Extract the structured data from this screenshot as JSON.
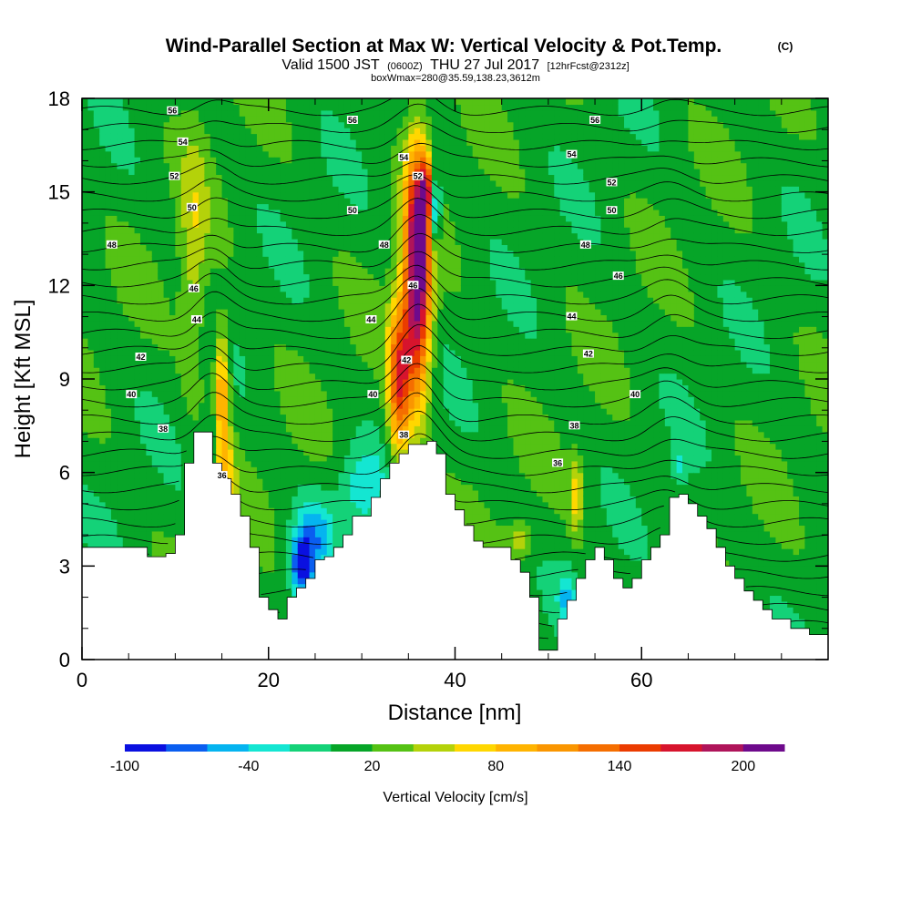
{
  "chart_data": {
    "type": "heatmap",
    "title": "Wind-Parallel Section at Max W: Vertical Velocity & Pot.Temp.",
    "copyright": "(C)",
    "subtitle": {
      "valid": "Valid 1500 JST",
      "utc": "(0600Z)",
      "date": "THU 27 Jul 2017",
      "fcst": "[12hrFcst@2312z]"
    },
    "subtitle2": "boxWmax=280@35.59,138.23,3612m",
    "xlabel": "Distance [nm]",
    "ylabel": "Height [Kft MSL]",
    "xlim": [
      0,
      80
    ],
    "ylim": [
      0,
      18
    ],
    "x_ticks": [
      0,
      20,
      40,
      60
    ],
    "y_ticks": [
      0,
      3,
      6,
      9,
      12,
      15,
      18
    ],
    "colorbar": {
      "label": "Vertical Velocity [cm/s]",
      "tick_labels": [
        "-100",
        "-40",
        "20",
        "80",
        "140",
        "200"
      ],
      "tick_values": [
        -100,
        -40,
        20,
        80,
        140,
        200
      ],
      "levels": [
        -100,
        -80,
        -60,
        -40,
        -20,
        0,
        20,
        40,
        60,
        80,
        100,
        120,
        140,
        160,
        180,
        200,
        220
      ],
      "colors": [
        "#0a10e0",
        "#0a5ef0",
        "#05b4f0",
        "#14e6d2",
        "#14d278",
        "#06a528",
        "#55c214",
        "#b4d20a",
        "#ffd700",
        "#ffb400",
        "#fa9600",
        "#f56e00",
        "#eb3c00",
        "#d7142d",
        "#af145a",
        "#6e0a8c"
      ]
    },
    "series": [
      {
        "name": "Vertical Velocity",
        "note": "filled contours"
      },
      {
        "name": "Pot.Temp.",
        "contour_labels": [
          "56",
          "54",
          "52",
          "50",
          "48",
          "46",
          "44",
          "42",
          "40",
          "38",
          "36"
        ]
      }
    ],
    "terrain_kft": [
      [
        0,
        3.6
      ],
      [
        5,
        3.6
      ],
      [
        7,
        3.3
      ],
      [
        9,
        3.4
      ],
      [
        10,
        4.0
      ],
      [
        11,
        6.3
      ],
      [
        12,
        7.3
      ],
      [
        13,
        7.3
      ],
      [
        14,
        6.3
      ],
      [
        15,
        5.8
      ],
      [
        16,
        5.3
      ],
      [
        17,
        4.6
      ],
      [
        18,
        3.6
      ],
      [
        19,
        2.0
      ],
      [
        20,
        1.6
      ],
      [
        21,
        1.3
      ],
      [
        22,
        2.0
      ],
      [
        23,
        2.3
      ],
      [
        24,
        2.6
      ],
      [
        25,
        3.2
      ],
      [
        26,
        3.3
      ],
      [
        27,
        3.6
      ],
      [
        28,
        4.0
      ],
      [
        29,
        4.6
      ],
      [
        30,
        4.6
      ],
      [
        31,
        5.2
      ],
      [
        32,
        5.8
      ],
      [
        33,
        6.3
      ],
      [
        34,
        6.6
      ],
      [
        35,
        6.9
      ],
      [
        37,
        7.0
      ],
      [
        38,
        6.6
      ],
      [
        39,
        5.3
      ],
      [
        40,
        4.8
      ],
      [
        41,
        4.3
      ],
      [
        42,
        3.8
      ],
      [
        43,
        3.6
      ],
      [
        44,
        3.6
      ],
      [
        45,
        3.6
      ],
      [
        46,
        3.2
      ],
      [
        47,
        2.8
      ],
      [
        48,
        2.0
      ],
      [
        49,
        0.3
      ],
      [
        50,
        0.3
      ],
      [
        51,
        1.3
      ],
      [
        52,
        1.9
      ],
      [
        53,
        2.6
      ],
      [
        54,
        3.2
      ],
      [
        55,
        3.6
      ],
      [
        56,
        3.2
      ],
      [
        57,
        2.6
      ],
      [
        58,
        2.3
      ],
      [
        59,
        2.6
      ],
      [
        60,
        3.2
      ],
      [
        61,
        3.6
      ],
      [
        62,
        4.0
      ],
      [
        63,
        5.2
      ],
      [
        64,
        5.3
      ],
      [
        65,
        5.0
      ],
      [
        66,
        4.6
      ],
      [
        67,
        4.2
      ],
      [
        68,
        3.6
      ],
      [
        69,
        3.0
      ],
      [
        70,
        2.6
      ],
      [
        71,
        2.2
      ],
      [
        72,
        1.9
      ],
      [
        73,
        1.6
      ],
      [
        74,
        1.3
      ],
      [
        75,
        1.3
      ],
      [
        76,
        1.0
      ],
      [
        77,
        1.0
      ],
      [
        78,
        0.8
      ],
      [
        80,
        0.8
      ]
    ],
    "updrafts": [
      {
        "x": 36,
        "z": 12.5,
        "w": 230,
        "sx": 1.4,
        "sz": 3.8
      },
      {
        "x": 34,
        "z": 9.0,
        "w": 140,
        "sx": 1.2,
        "sz": 2.5
      },
      {
        "x": 37,
        "z": 15.0,
        "w": 110,
        "sx": 0.7,
        "sz": 1.0
      },
      {
        "x": 15,
        "z": 8.5,
        "w": 100,
        "sx": 0.8,
        "sz": 2.2
      },
      {
        "x": 15.5,
        "z": 5.5,
        "w": 55,
        "sx": 1.0,
        "sz": 1.5
      },
      {
        "x": 53,
        "z": 5.3,
        "w": 60,
        "sx": 0.7,
        "sz": 1.2
      },
      {
        "x": 47,
        "z": 3.8,
        "w": 40,
        "sx": 1.5,
        "sz": 0.6
      },
      {
        "x": 12,
        "z": 13.0,
        "w": 40,
        "sx": 1.5,
        "sz": 4.0
      }
    ],
    "downdrafts": [
      {
        "x": 23.5,
        "z": 3.0,
        "w": -95,
        "sx": 1.2,
        "sz": 1.0
      },
      {
        "x": 25.0,
        "z": 4.0,
        "w": -55,
        "sx": 2.0,
        "sz": 1.3
      },
      {
        "x": 30.0,
        "z": 5.5,
        "w": -45,
        "sx": 2.5,
        "sz": 1.3
      },
      {
        "x": 37.8,
        "z": 14.5,
        "w": -110,
        "sx": 0.6,
        "sz": 1.2
      },
      {
        "x": 14.0,
        "z": 7.0,
        "w": -35,
        "sx": 0.8,
        "sz": 1.2
      },
      {
        "x": 52.0,
        "z": 2.0,
        "w": -45,
        "sx": 1.0,
        "sz": 0.8
      },
      {
        "x": 64.0,
        "z": 6.2,
        "w": -30,
        "sx": 1.0,
        "sz": 0.6
      }
    ],
    "theta_labels": [
      {
        "x": 9.7,
        "z": 17.6,
        "text": "56"
      },
      {
        "x": 29,
        "z": 17.3,
        "text": "56"
      },
      {
        "x": 55,
        "z": 17.3,
        "text": "56"
      },
      {
        "x": 10.8,
        "z": 16.6,
        "text": "54"
      },
      {
        "x": 34.5,
        "z": 16.1,
        "text": "54"
      },
      {
        "x": 52.5,
        "z": 16.2,
        "text": "54"
      },
      {
        "x": 9.9,
        "z": 15.5,
        "text": "52"
      },
      {
        "x": 36.0,
        "z": 15.5,
        "text": "52"
      },
      {
        "x": 56.8,
        "z": 15.3,
        "text": "52"
      },
      {
        "x": 11.8,
        "z": 14.5,
        "text": "50"
      },
      {
        "x": 29.0,
        "z": 14.4,
        "text": "50"
      },
      {
        "x": 56.8,
        "z": 14.4,
        "text": "50"
      },
      {
        "x": 3.2,
        "z": 13.3,
        "text": "48"
      },
      {
        "x": 32.4,
        "z": 13.3,
        "text": "48"
      },
      {
        "x": 54.0,
        "z": 13.3,
        "text": "48"
      },
      {
        "x": 12.0,
        "z": 11.9,
        "text": "46"
      },
      {
        "x": 35.5,
        "z": 12.0,
        "text": "46"
      },
      {
        "x": 57.5,
        "z": 12.3,
        "text": "46"
      },
      {
        "x": 12.3,
        "z": 10.9,
        "text": "44"
      },
      {
        "x": 31.0,
        "z": 10.9,
        "text": "44"
      },
      {
        "x": 52.5,
        "z": 11.0,
        "text": "44"
      },
      {
        "x": 6.3,
        "z": 9.7,
        "text": "42"
      },
      {
        "x": 34.8,
        "z": 9.6,
        "text": "42"
      },
      {
        "x": 54.3,
        "z": 9.8,
        "text": "42"
      },
      {
        "x": 5.3,
        "z": 8.5,
        "text": "40"
      },
      {
        "x": 31.2,
        "z": 8.5,
        "text": "40"
      },
      {
        "x": 59.3,
        "z": 8.5,
        "text": "40"
      },
      {
        "x": 8.7,
        "z": 7.4,
        "text": "38"
      },
      {
        "x": 34.5,
        "z": 7.2,
        "text": "38"
      },
      {
        "x": 52.8,
        "z": 7.5,
        "text": "38"
      },
      {
        "x": 15.0,
        "z": 5.9,
        "text": "36"
      },
      {
        "x": 51.0,
        "z": 6.3,
        "text": "36"
      }
    ]
  }
}
